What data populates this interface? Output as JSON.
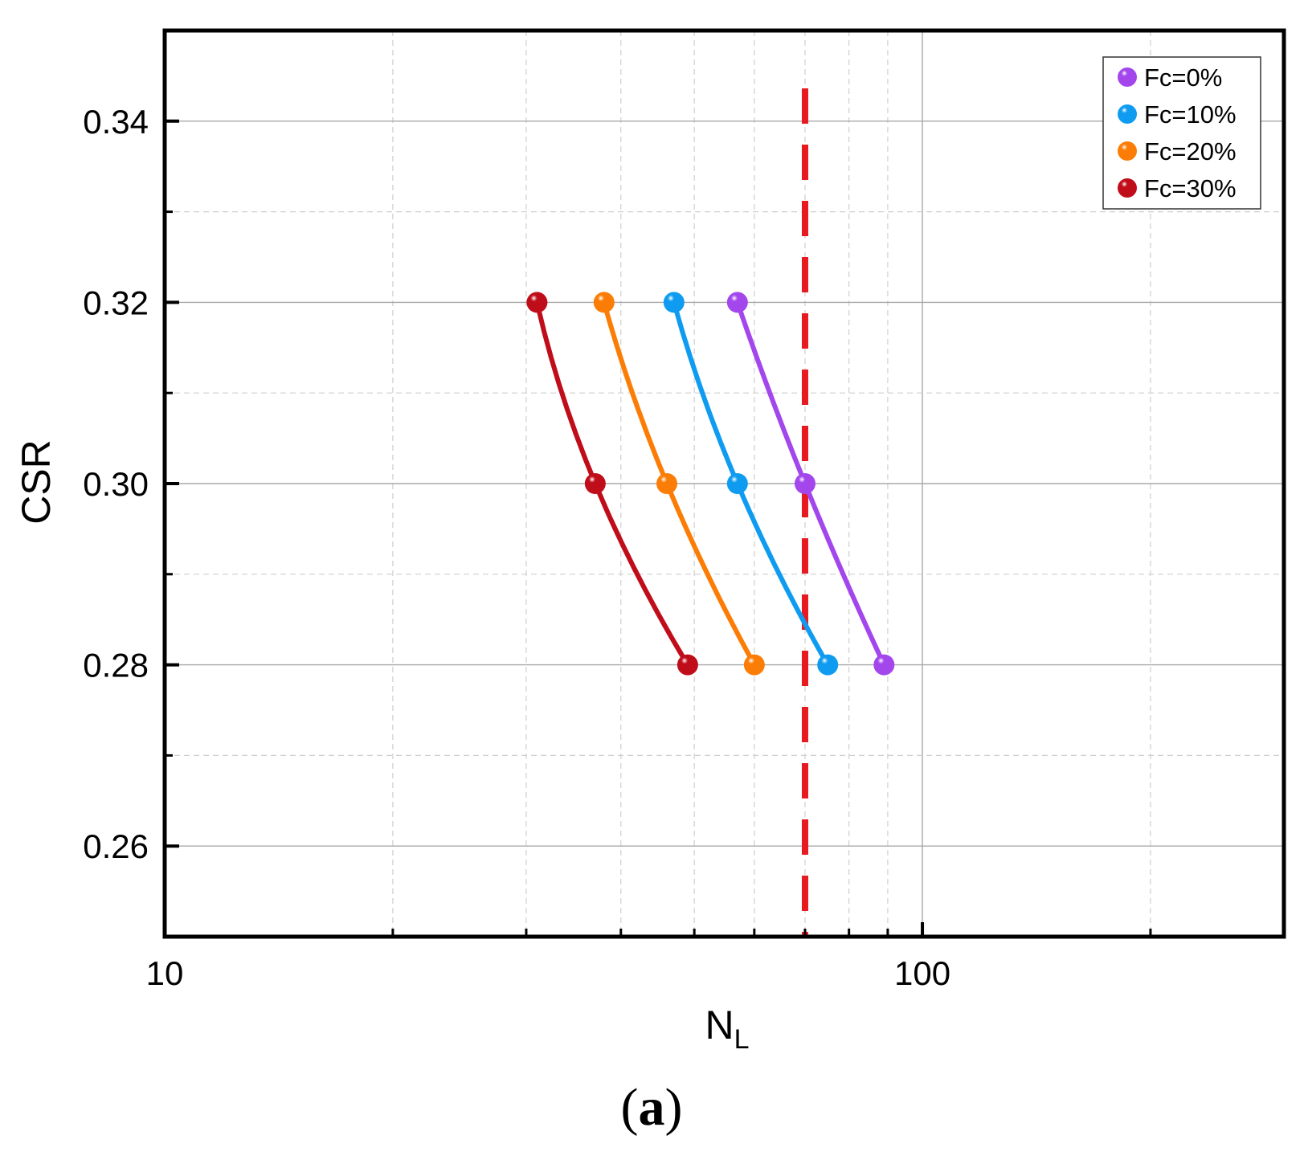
{
  "chart_data": {
    "type": "line",
    "title": "",
    "xlabel": "N",
    "xlabel_subscript": "L",
    "ylabel": "CSR",
    "xscale": "log",
    "xlim": [
      10,
      300
    ],
    "ylim": [
      0.25,
      0.35
    ],
    "xticks": [
      10,
      100
    ],
    "xtick_labels": [
      "10",
      "100"
    ],
    "yticks": [
      0.26,
      0.28,
      0.3,
      0.32,
      0.34
    ],
    "ytick_labels": [
      "0.26",
      "0.28",
      "0.30",
      "0.32",
      "0.34"
    ],
    "grid": true,
    "legend_position": "top-right",
    "reference_line": {
      "orientation": "vertical",
      "x": 70,
      "color": "#e8191f",
      "style": "dashed"
    },
    "series": [
      {
        "name": "Fc=0%",
        "color": "#a347ed",
        "points": [
          [
            57,
            0.32
          ],
          [
            70,
            0.3
          ],
          [
            89,
            0.28
          ]
        ]
      },
      {
        "name": "Fc=10%",
        "color": "#0f9cf0",
        "points": [
          [
            47,
            0.32
          ],
          [
            57,
            0.3
          ],
          [
            75,
            0.28
          ]
        ]
      },
      {
        "name": "Fc=20%",
        "color": "#fb7d06",
        "points": [
          [
            38,
            0.32
          ],
          [
            46,
            0.3
          ],
          [
            60,
            0.28
          ]
        ]
      },
      {
        "name": "Fc=30%",
        "color": "#c00d1a",
        "points": [
          [
            31,
            0.32
          ],
          [
            37,
            0.3
          ],
          [
            49,
            0.28
          ]
        ]
      }
    ]
  },
  "caption": {
    "open": "(",
    "letter": "a",
    "close": ")"
  }
}
